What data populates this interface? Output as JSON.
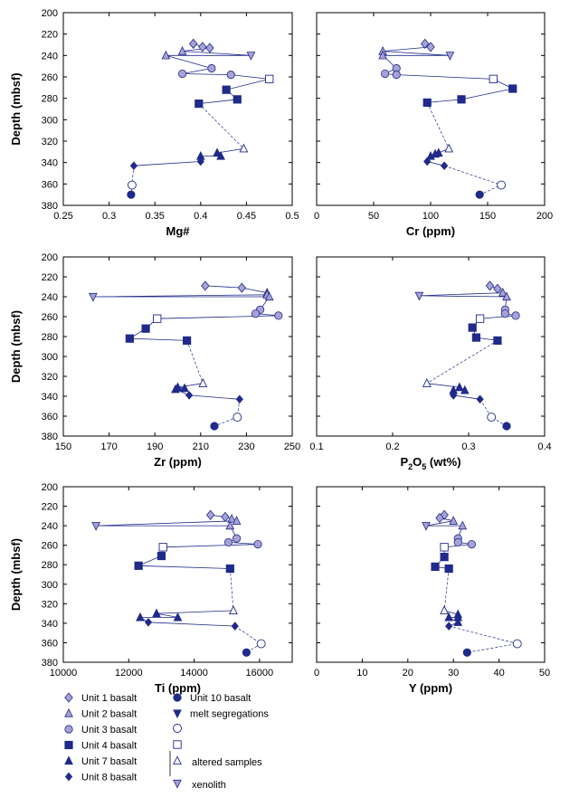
{
  "colors": {
    "line": "#1f2a8a",
    "unit1": "#a7a2d6",
    "unit3": "#a7a2d6",
    "solid": "#1f2a8a",
    "open_stroke": "#1f2a8a",
    "frame": "#000000"
  },
  "legend": {
    "entries": [
      {
        "key": "unit1",
        "label": "Unit 1 basalt"
      },
      {
        "key": "unit2",
        "label": "Unit 2 basalt"
      },
      {
        "key": "unit3",
        "label": "Unit 3 basalt"
      },
      {
        "key": "unit4",
        "label": "Unit 4 basalt"
      },
      {
        "key": "unit7",
        "label": "Unit 7 basalt"
      },
      {
        "key": "unit8",
        "label": "Unit 8 basalt"
      },
      {
        "key": "unit10",
        "label": "Unit 10 basalt"
      },
      {
        "key": "melt",
        "label": "melt segregations"
      }
    ],
    "altered_label": "altered samples",
    "xenolith_label": "xenolith"
  },
  "chart_data": [
    {
      "type": "scatter",
      "xlabel": "Mg#",
      "ylabel": "Depth (mbsf)",
      "xlim": [
        0.25,
        0.5
      ],
      "ylim": [
        380,
        200
      ],
      "xticks": [
        "0.25",
        "0.3",
        "0.35",
        "0.4",
        "0.45",
        "0.5"
      ],
      "yticks": [
        "200",
        "220",
        "240",
        "260",
        "280",
        "300",
        "320",
        "340",
        "360",
        "380"
      ],
      "path": [
        {
          "x": 0.392,
          "y": 229,
          "u": "unit1"
        },
        {
          "x": 0.402,
          "y": 232,
          "u": "unit1"
        },
        {
          "x": 0.41,
          "y": 233,
          "u": "unit1"
        },
        {
          "x": 0.38,
          "y": 236,
          "u": "unit2"
        },
        {
          "x": 0.455,
          "y": 240,
          "u": "xeno"
        },
        {
          "x": 0.362,
          "y": 240,
          "u": "unit2"
        },
        {
          "x": 0.412,
          "y": 252,
          "u": "unit3"
        },
        {
          "x": 0.38,
          "y": 257,
          "u": "unit3"
        },
        {
          "x": 0.433,
          "y": 258,
          "u": "unit3"
        },
        {
          "x": 0.475,
          "y": 262,
          "u": "altsq"
        },
        {
          "x": 0.428,
          "y": 272,
          "u": "unit4"
        },
        {
          "x": 0.44,
          "y": 281,
          "u": "unit4"
        },
        {
          "x": 0.398,
          "y": 285,
          "u": "unit4"
        }
      ],
      "path2": [
        {
          "x": 0.447,
          "y": 327,
          "u": "alttri"
        },
        {
          "x": 0.418,
          "y": 331,
          "u": "unit7"
        },
        {
          "x": 0.422,
          "y": 334,
          "u": "unit7"
        },
        {
          "x": 0.4,
          "y": 334,
          "u": "unit7"
        },
        {
          "x": 0.4,
          "y": 339,
          "u": "unit8"
        },
        {
          "x": 0.327,
          "y": 343,
          "u": "unit8"
        },
        {
          "x": 0.325,
          "y": 361,
          "u": "altcirc"
        },
        {
          "x": 0.324,
          "y": 370,
          "u": "unit10"
        }
      ]
    },
    {
      "type": "scatter",
      "xlabel": "Cr (ppm)",
      "ylabel": "",
      "xlim": [
        0,
        200
      ],
      "ylim": [
        380,
        200
      ],
      "xticks": [
        "0",
        "50",
        "100",
        "150",
        "200"
      ],
      "yticks": [
        "200",
        "220",
        "240",
        "260",
        "280",
        "300",
        "320",
        "340",
        "360",
        "380"
      ],
      "path": [
        {
          "x": 95,
          "y": 229,
          "u": "unit1"
        },
        {
          "x": 100,
          "y": 232,
          "u": "unit1"
        },
        {
          "x": 58,
          "y": 236,
          "u": "unit2"
        },
        {
          "x": 117,
          "y": 240,
          "u": "xeno"
        },
        {
          "x": 58,
          "y": 240,
          "u": "unit2"
        },
        {
          "x": 70,
          "y": 252,
          "u": "unit3"
        },
        {
          "x": 60,
          "y": 257,
          "u": "unit3"
        },
        {
          "x": 70,
          "y": 258,
          "u": "unit3"
        },
        {
          "x": 155,
          "y": 262,
          "u": "altsq"
        },
        {
          "x": 172,
          "y": 271,
          "u": "unit4"
        },
        {
          "x": 127,
          "y": 281,
          "u": "unit4"
        },
        {
          "x": 97,
          "y": 284,
          "u": "unit4"
        }
      ],
      "path2": [
        {
          "x": 116,
          "y": 327,
          "u": "alttri"
        },
        {
          "x": 107,
          "y": 331,
          "u": "unit7"
        },
        {
          "x": 104,
          "y": 332,
          "u": "unit7"
        },
        {
          "x": 100,
          "y": 334,
          "u": "unit7"
        },
        {
          "x": 97,
          "y": 339,
          "u": "unit8"
        },
        {
          "x": 112,
          "y": 343,
          "u": "unit8"
        },
        {
          "x": 162,
          "y": 361,
          "u": "altcirc"
        },
        {
          "x": 143,
          "y": 370,
          "u": "unit10"
        }
      ]
    },
    {
      "type": "scatter",
      "xlabel": "Zr (ppm)",
      "ylabel": "Depth (mbsf)",
      "xlim": [
        150,
        250
      ],
      "ylim": [
        380,
        200
      ],
      "xticks": [
        "150",
        "170",
        "190",
        "210",
        "230",
        "250"
      ],
      "yticks": [
        "200",
        "220",
        "240",
        "260",
        "280",
        "300",
        "320",
        "340",
        "360",
        "380"
      ],
      "path": [
        {
          "x": 212,
          "y": 229,
          "u": "unit1"
        },
        {
          "x": 228,
          "y": 231,
          "u": "unit1"
        },
        {
          "x": 239,
          "y": 236,
          "u": "unit2"
        },
        {
          "x": 239,
          "y": 238,
          "u": "unit2"
        },
        {
          "x": 163,
          "y": 240,
          "u": "xeno"
        },
        {
          "x": 240,
          "y": 240,
          "u": "unit2"
        },
        {
          "x": 236,
          "y": 253,
          "u": "unit3"
        },
        {
          "x": 234,
          "y": 257,
          "u": "unit3"
        },
        {
          "x": 244,
          "y": 259,
          "u": "unit3"
        },
        {
          "x": 191,
          "y": 262,
          "u": "altsq"
        },
        {
          "x": 186,
          "y": 272,
          "u": "unit4"
        },
        {
          "x": 179,
          "y": 282,
          "u": "unit4"
        },
        {
          "x": 204,
          "y": 284,
          "u": "unit4"
        }
      ],
      "path2": [
        {
          "x": 211,
          "y": 327,
          "u": "alttri"
        },
        {
          "x": 200,
          "y": 331,
          "u": "unit7"
        },
        {
          "x": 203,
          "y": 332,
          "u": "unit7"
        },
        {
          "x": 199,
          "y": 333,
          "u": "unit7"
        },
        {
          "x": 205,
          "y": 339,
          "u": "unit8"
        },
        {
          "x": 227,
          "y": 343,
          "u": "unit8"
        },
        {
          "x": 226,
          "y": 361,
          "u": "altcirc"
        },
        {
          "x": 216,
          "y": 370,
          "u": "unit10"
        }
      ]
    },
    {
      "type": "scatter",
      "xlabel": "P2O5 (wt%)",
      "ylabel": "",
      "xlim": [
        0.1,
        0.4
      ],
      "ylim": [
        380,
        200
      ],
      "xticks": [
        "0.1",
        "0.2",
        "0.3",
        "0.4"
      ],
      "yticks": [
        "200",
        "220",
        "240",
        "260",
        "280",
        "300",
        "320",
        "340",
        "360",
        "380"
      ],
      "path": [
        {
          "x": 0.328,
          "y": 229,
          "u": "unit1"
        },
        {
          "x": 0.338,
          "y": 232,
          "u": "unit1"
        },
        {
          "x": 0.345,
          "y": 236,
          "u": "unit2"
        },
        {
          "x": 0.235,
          "y": 239,
          "u": "xeno"
        },
        {
          "x": 0.35,
          "y": 240,
          "u": "unit2"
        },
        {
          "x": 0.348,
          "y": 253,
          "u": "unit3"
        },
        {
          "x": 0.348,
          "y": 257,
          "u": "unit3"
        },
        {
          "x": 0.362,
          "y": 259,
          "u": "unit3"
        },
        {
          "x": 0.315,
          "y": 262,
          "u": "altsq"
        },
        {
          "x": 0.305,
          "y": 271,
          "u": "unit4"
        },
        {
          "x": 0.31,
          "y": 281,
          "u": "unit4"
        },
        {
          "x": 0.338,
          "y": 284,
          "u": "unit4"
        }
      ],
      "path2": [
        {
          "x": 0.245,
          "y": 327,
          "u": "alttri"
        },
        {
          "x": 0.288,
          "y": 331,
          "u": "unit7"
        },
        {
          "x": 0.295,
          "y": 334,
          "u": "unit7"
        },
        {
          "x": 0.28,
          "y": 334,
          "u": "unit7"
        },
        {
          "x": 0.28,
          "y": 339,
          "u": "unit8"
        },
        {
          "x": 0.315,
          "y": 343,
          "u": "unit8"
        },
        {
          "x": 0.33,
          "y": 361,
          "u": "altcirc"
        },
        {
          "x": 0.35,
          "y": 370,
          "u": "unit10"
        }
      ]
    },
    {
      "type": "scatter",
      "xlabel": "Ti (ppm)",
      "ylabel": "Depth (mbsf)",
      "xlim": [
        10000,
        17000
      ],
      "ylim": [
        380,
        200
      ],
      "xticks": [
        "10000",
        "12000",
        "14000",
        "16000"
      ],
      "yticks": [
        "200",
        "220",
        "240",
        "260",
        "280",
        "300",
        "320",
        "340",
        "360",
        "380"
      ],
      "path": [
        {
          "x": 14500,
          "y": 229,
          "u": "unit1"
        },
        {
          "x": 14950,
          "y": 231,
          "u": "unit1"
        },
        {
          "x": 15150,
          "y": 233,
          "u": "unit2"
        },
        {
          "x": 15300,
          "y": 235,
          "u": "unit2"
        },
        {
          "x": 11000,
          "y": 240,
          "u": "xeno"
        },
        {
          "x": 15100,
          "y": 240,
          "u": "unit2"
        },
        {
          "x": 15300,
          "y": 253,
          "u": "unit3"
        },
        {
          "x": 15050,
          "y": 257,
          "u": "unit3"
        },
        {
          "x": 15950,
          "y": 259,
          "u": "unit3"
        },
        {
          "x": 13050,
          "y": 262,
          "u": "altsq"
        },
        {
          "x": 13000,
          "y": 271,
          "u": "unit4"
        },
        {
          "x": 12300,
          "y": 281,
          "u": "unit4"
        },
        {
          "x": 15100,
          "y": 284,
          "u": "unit4"
        }
      ],
      "path2": [
        {
          "x": 15200,
          "y": 327,
          "u": "alttri"
        },
        {
          "x": 12850,
          "y": 330,
          "u": "unit7"
        },
        {
          "x": 13500,
          "y": 334,
          "u": "unit7"
        },
        {
          "x": 12350,
          "y": 334,
          "u": "unit7"
        },
        {
          "x": 12600,
          "y": 339,
          "u": "unit8"
        },
        {
          "x": 15250,
          "y": 343,
          "u": "unit8"
        },
        {
          "x": 16050,
          "y": 361,
          "u": "altcirc"
        },
        {
          "x": 15600,
          "y": 370,
          "u": "unit10"
        }
      ]
    },
    {
      "type": "scatter",
      "xlabel": "Y (ppm)",
      "ylabel": "",
      "xlim": [
        0,
        50
      ],
      "ylim": [
        380,
        200
      ],
      "xticks": [
        "0",
        "10",
        "20",
        "30",
        "40",
        "50"
      ],
      "yticks": [
        "200",
        "220",
        "240",
        "260",
        "280",
        "300",
        "320",
        "340",
        "360",
        "380"
      ],
      "path": [
        {
          "x": 28,
          "y": 229,
          "u": "unit1"
        },
        {
          "x": 27,
          "y": 232,
          "u": "unit1"
        },
        {
          "x": 30,
          "y": 235,
          "u": "unit2"
        },
        {
          "x": 24,
          "y": 240,
          "u": "xeno"
        },
        {
          "x": 32,
          "y": 240,
          "u": "unit2"
        },
        {
          "x": 31,
          "y": 253,
          "u": "unit3"
        },
        {
          "x": 31,
          "y": 257,
          "u": "unit3"
        },
        {
          "x": 34,
          "y": 259,
          "u": "unit3"
        },
        {
          "x": 28,
          "y": 262,
          "u": "altsq"
        },
        {
          "x": 28,
          "y": 272,
          "u": "unit4"
        },
        {
          "x": 26,
          "y": 282,
          "u": "unit4"
        },
        {
          "x": 29,
          "y": 284,
          "u": "unit4"
        }
      ],
      "path2": [
        {
          "x": 28,
          "y": 327,
          "u": "alttri"
        },
        {
          "x": 31,
          "y": 331,
          "u": "unit7"
        },
        {
          "x": 31,
          "y": 334,
          "u": "unit7"
        },
        {
          "x": 29,
          "y": 334,
          "u": "unit7"
        },
        {
          "x": 31,
          "y": 339,
          "u": "unit7"
        },
        {
          "x": 29,
          "y": 343,
          "u": "unit8"
        },
        {
          "x": 44,
          "y": 361,
          "u": "altcirc"
        },
        {
          "x": 33,
          "y": 370,
          "u": "unit10"
        }
      ]
    }
  ]
}
